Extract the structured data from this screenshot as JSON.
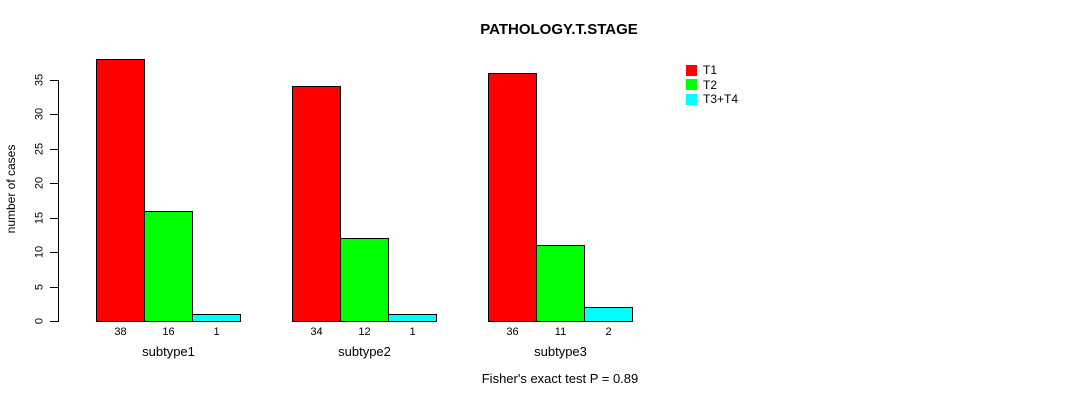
{
  "chart_data": {
    "type": "bar",
    "title": "PATHOLOGY.T.STAGE",
    "ylabel": "number of cases",
    "xlabel": "",
    "categories": [
      "subtype1",
      "subtype2",
      "subtype3"
    ],
    "series": [
      {
        "name": "T1",
        "color": "#ff0000",
        "values": [
          38,
          34,
          36
        ]
      },
      {
        "name": "T2",
        "color": "#00ff00",
        "values": [
          16,
          12,
          11
        ]
      },
      {
        "name": "T3+T4",
        "color": "#00ffff",
        "values": [
          1,
          1,
          2
        ]
      }
    ],
    "bar_value_labels": [
      [
        38,
        16,
        1
      ],
      [
        34,
        12,
        1
      ],
      [
        36,
        11,
        2
      ]
    ],
    "yticks": [
      0,
      5,
      10,
      15,
      20,
      25,
      30,
      35
    ],
    "ylim": [
      0,
      38.5
    ],
    "grid": false,
    "legend_position": "top-right",
    "legend_entries": [
      "T1",
      "T2",
      "T3+T4"
    ],
    "annotation": "Fisher's exact test P = 0.89",
    "bar_border_color": "#000000",
    "axis_color": "#000000",
    "background_color": "#ffffff"
  }
}
